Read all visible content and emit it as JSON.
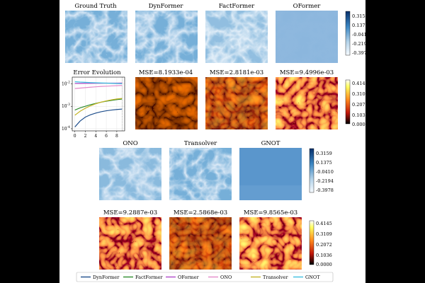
{
  "figure": {
    "row1_titles": [
      "Ground Truth",
      "DynFormer",
      "FactFormer",
      "OFormer"
    ],
    "row2_titles": [
      "MSE=8.1933e-04",
      "MSE=2.8181e-03",
      "MSE=9.4996e-03"
    ],
    "row3_titles": [
      "ONO",
      "Transolver",
      "GNOT"
    ],
    "row4_titles": [
      "MSE=9.2887e-03",
      "MSE=2.5868e-03",
      "MSE=9.8565e-03"
    ],
    "field_colorbar_ticks": [
      "0.3159",
      "0.1375",
      "-0.0410",
      "-0.2194",
      "-0.3978"
    ],
    "error_colorbar_ticks": [
      "0.4145",
      "0.3109",
      "0.2072",
      "0.1036",
      "0.0000"
    ],
    "colors": {
      "field_dark": "#2f6db0",
      "field_mid": "#7fb0dc",
      "field_light": "#dbe9f6",
      "oformer_field": "#8fb8de",
      "gnot_field": "#5a96cc",
      "error_dark": "#1a0000",
      "error_mid": "#b81a0c",
      "error_bright": "#ff8a1e"
    }
  },
  "chart_data": {
    "type": "line",
    "title": "Error Evolution",
    "xlabel": "",
    "ylabel": "",
    "yscale": "log",
    "x": [
      0,
      1,
      2,
      3,
      4,
      5,
      6,
      7,
      8,
      9
    ],
    "xticks": [
      "0",
      "2",
      "4",
      "6",
      "8"
    ],
    "yticks": [
      "10^-2",
      "10^-3",
      "10^-4"
    ],
    "ylim": [
      8e-05,
      0.02
    ],
    "grid": true,
    "series": [
      {
        "name": "DynFormer",
        "color": "#1f4e8c",
        "values": [
          0.00012,
          0.00022,
          0.00033,
          0.00042,
          0.0005,
          0.00057,
          0.00063,
          0.00068,
          0.00072,
          0.00075
        ]
      },
      {
        "name": "FactFormer",
        "color": "#2e8b2e",
        "values": [
          0.00068,
          0.00085,
          0.001,
          0.00118,
          0.00135,
          0.00152,
          0.00168,
          0.00183,
          0.00198,
          0.0021
        ]
      },
      {
        "name": "OFormer",
        "color": "#b04ac9",
        "values": [
          0.0105,
          0.0105,
          0.0106,
          0.0106,
          0.0107,
          0.0107,
          0.0108,
          0.0108,
          0.0108,
          0.0109
        ]
      },
      {
        "name": "ONO",
        "color": "#e389c9",
        "values": [
          0.0062,
          0.0065,
          0.0068,
          0.0071,
          0.0074,
          0.0077,
          0.0079,
          0.0081,
          0.0083,
          0.0085
        ]
      },
      {
        "name": "Transolver",
        "color": "#c4b427",
        "values": [
          0.0004,
          0.0006,
          0.00082,
          0.00105,
          0.0013,
          0.00153,
          0.00175,
          0.00195,
          0.00212,
          0.00225
        ]
      },
      {
        "name": "GNOT",
        "color": "#3ec0e0",
        "values": [
          0.0125,
          0.012,
          0.0117,
          0.0114,
          0.0112,
          0.011,
          0.0108,
          0.0106,
          0.0104,
          0.0102
        ]
      }
    ]
  }
}
